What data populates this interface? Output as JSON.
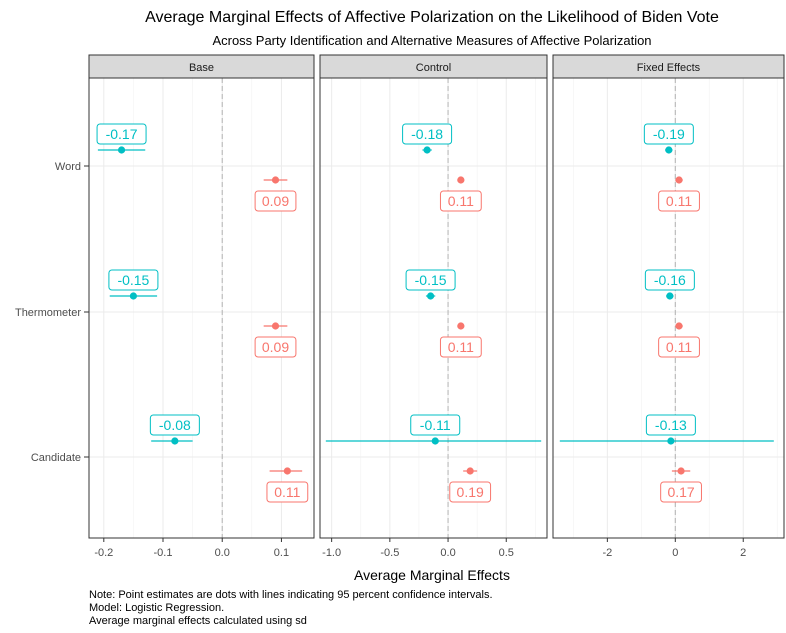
{
  "chart_data": {
    "type": "scatter",
    "title": "Average Marginal Effects of Affective Polarization on the Likelihood of Biden Vote",
    "subtitle": "Across Party Identification and Alternative Measures of Affective Polarization",
    "xlabel": "Average Marginal Effects",
    "categories": [
      "Word",
      "Thermometer",
      "Candidate"
    ],
    "colors": {
      "teal": "#00BFC4",
      "red": "#F8766D"
    },
    "notes": [
      "Note: Point estimates are dots with lines indicating 95 percent confidence intervals.",
      "Model: Logistic Regression.",
      "Average marginal effects calculated using sd"
    ],
    "panels": [
      {
        "name": "Base",
        "xlim": [
          -0.225,
          0.155
        ],
        "xticks": [
          -0.2,
          -0.1,
          0.0,
          0.1
        ],
        "xtick_labels": [
          "-0.2",
          "-0.1",
          "0.0",
          "0.1"
        ],
        "series": [
          {
            "color": "teal",
            "estimates": [
              -0.17,
              -0.15,
              -0.08
            ],
            "ci_low": [
              -0.21,
              -0.19,
              -0.12
            ],
            "ci_high": [
              -0.13,
              -0.11,
              -0.05
            ],
            "labels": [
              "-0.17",
              "-0.15",
              "-0.08"
            ]
          },
          {
            "color": "red",
            "estimates": [
              0.09,
              0.09,
              0.11
            ],
            "ci_low": [
              0.07,
              0.07,
              0.08
            ],
            "ci_high": [
              0.11,
              0.11,
              0.135
            ],
            "labels": [
              "0.09",
              "0.09",
              "0.11"
            ]
          }
        ]
      },
      {
        "name": "Control",
        "xlim": [
          -1.1,
          0.85
        ],
        "xticks": [
          -1.0,
          -0.5,
          0.0,
          0.5
        ],
        "xtick_labels": [
          "-1.0",
          "-0.5",
          "0.0",
          "0.5"
        ],
        "series": [
          {
            "color": "teal",
            "estimates": [
              -0.18,
              -0.15,
              -0.11
            ],
            "ci_low": [
              -0.22,
              -0.19,
              -1.05
            ],
            "ci_high": [
              -0.14,
              -0.11,
              0.8
            ],
            "labels": [
              "-0.18",
              "-0.15",
              "-0.11"
            ]
          },
          {
            "color": "red",
            "estimates": [
              0.11,
              0.11,
              0.19
            ],
            "ci_low": [
              0.08,
              0.08,
              0.13
            ],
            "ci_high": [
              0.14,
              0.14,
              0.25
            ],
            "labels": [
              "0.11",
              "0.11",
              "0.19"
            ]
          }
        ]
      },
      {
        "name": "Fixed Effects",
        "xlim": [
          -3.6,
          3.2
        ],
        "xticks": [
          -2,
          0,
          2
        ],
        "xtick_labels": [
          "-2",
          "0",
          "2"
        ],
        "series": [
          {
            "color": "teal",
            "estimates": [
              -0.19,
              -0.16,
              -0.13
            ],
            "ci_low": [
              -0.3,
              -0.27,
              -3.4
            ],
            "ci_high": [
              -0.08,
              -0.05,
              2.9
            ],
            "labels": [
              "-0.19",
              "-0.16",
              "-0.13"
            ]
          },
          {
            "color": "red",
            "estimates": [
              0.11,
              0.11,
              0.17
            ],
            "ci_low": [
              0.0,
              0.0,
              -0.1
            ],
            "ci_high": [
              0.22,
              0.22,
              0.44
            ],
            "labels": [
              "0.11",
              "0.11",
              "0.17"
            ]
          }
        ]
      }
    ]
  }
}
